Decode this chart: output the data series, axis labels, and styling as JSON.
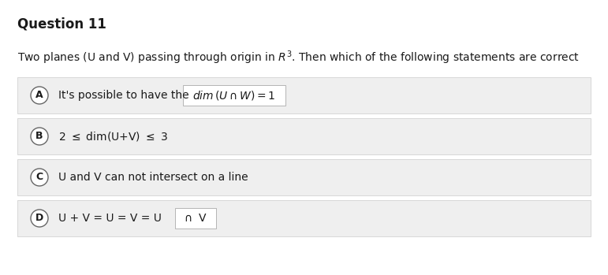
{
  "title": "Question 11",
  "background_color": "#ffffff",
  "option_bg_color": "#efefef",
  "option_border_color": "#cccccc",
  "text_color": "#1a1a1a",
  "title_fontsize": 12,
  "subtitle_fontsize": 10,
  "option_fontsize": 10,
  "label_fontsize": 9,
  "subtitle_plain": "Two planes (U and V) passing through origin in ",
  "subtitle_math": "$\\mathit{R}^3$",
  "subtitle_rest": ". Then which of the following statements are correct",
  "labels": [
    "A",
    "B",
    "C",
    "D"
  ],
  "option_A_plain": "It's possible to have the  ",
  "option_A_math": "$\\mathit{dim}\\,(U \\cap W) = 1$",
  "option_B_text": "$2 \\ \\leq \\ \\mathrm{dim(U{+}V)} \\ \\leq \\ 3$",
  "option_C_text": "U and V can not intersect on a line",
  "option_D_plain": "U + V = U = V = U  ",
  "option_D_math": "$\\cap$  V"
}
